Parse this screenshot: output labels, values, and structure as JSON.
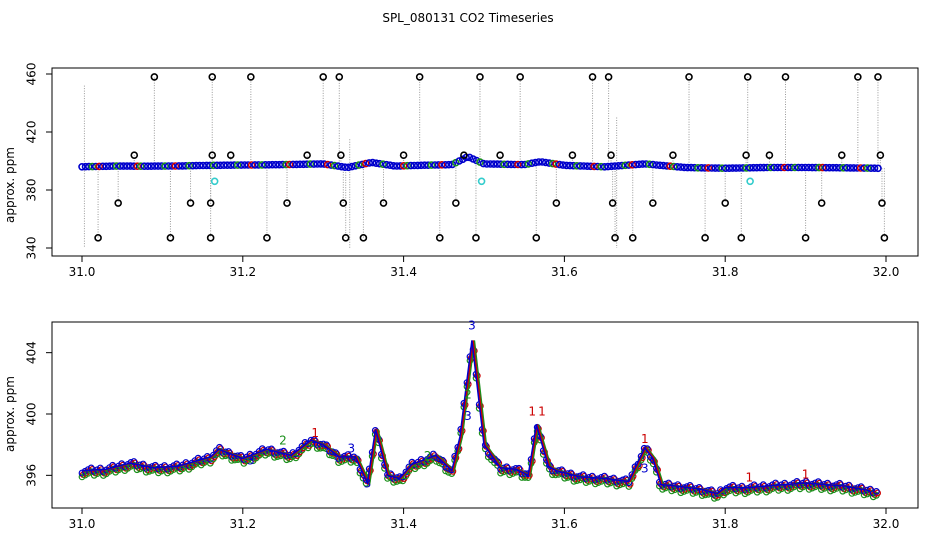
{
  "page": {
    "title": "SPL_080131  CO2 Timeseries"
  },
  "chart_data": [
    {
      "type": "scatter",
      "name": "full-range",
      "title": "SPL_080131  CO2 Timeseries",
      "xlabel": "",
      "ylabel": "approx. ppm",
      "xlim": [
        31.0,
        32.0
      ],
      "ylim": [
        340,
        460
      ],
      "xticks": [
        31.0,
        31.2,
        31.4,
        31.6,
        31.8,
        32.0
      ],
      "xtick_labels": [
        "31.0",
        "31.2",
        "31.4",
        "31.6",
        "31.8",
        "32.0"
      ],
      "yticks": [
        340,
        380,
        420,
        460
      ],
      "ytick_labels": [
        "340",
        "380",
        "420",
        "460"
      ],
      "baseline_series": {
        "name": "co2",
        "colors": [
          "#0000cc",
          "#1a8f1a",
          "#cc0000"
        ],
        "x": [
          31.0,
          31.04,
          31.08,
          31.12,
          31.16,
          31.2,
          31.25,
          31.3,
          31.33,
          31.36,
          31.39,
          31.42,
          31.46,
          31.48,
          31.5,
          31.55,
          31.57,
          31.6,
          31.65,
          31.7,
          31.75,
          31.8,
          31.85,
          31.9,
          31.95,
          31.99
        ],
        "y": [
          396,
          396.5,
          396.4,
          396.6,
          397,
          397.2,
          397.5,
          398,
          395.5,
          399,
          396.5,
          397,
          397.5,
          403,
          398,
          397.5,
          399.5,
          397,
          396,
          398,
          395.5,
          395,
          395.5,
          395.5,
          395.3,
          395
        ]
      },
      "outlier_points": {
        "color": "#000000",
        "x": [
          31.02,
          31.045,
          31.065,
          31.09,
          31.11,
          31.135,
          31.16,
          31.16,
          31.162,
          31.162,
          31.185,
          31.21,
          31.23,
          31.255,
          31.28,
          31.3,
          31.32,
          31.322,
          31.325,
          31.328,
          31.35,
          31.375,
          31.4,
          31.42,
          31.445,
          31.465,
          31.475,
          31.49,
          31.495,
          31.52,
          31.545,
          31.565,
          31.59,
          31.61,
          31.635,
          31.655,
          31.658,
          31.66,
          31.663,
          31.685,
          31.71,
          31.735,
          31.755,
          31.775,
          31.8,
          31.82,
          31.826,
          31.828,
          31.855,
          31.875,
          31.9,
          31.92,
          31.945,
          31.965,
          31.99,
          31.993,
          31.995,
          31.998
        ],
        "y": [
          347,
          371,
          404,
          458,
          347,
          371,
          347,
          371,
          404,
          458,
          404,
          458,
          347,
          371,
          404,
          458,
          458,
          404,
          371,
          347,
          347,
          371,
          404,
          458,
          347,
          371,
          404,
          347,
          458,
          404,
          458,
          347,
          371,
          404,
          458,
          458,
          404,
          371,
          347,
          347,
          371,
          404,
          458,
          347,
          371,
          347,
          404,
          458,
          404,
          458,
          347,
          371,
          404,
          458,
          458,
          404,
          371,
          347
        ]
      },
      "highlight_points": {
        "color": "#33cccc",
        "x": [
          31.165,
          31.497,
          31.831
        ],
        "y": [
          386,
          386,
          386
        ]
      }
    },
    {
      "type": "line",
      "name": "zoomed",
      "title": "",
      "xlabel": "",
      "ylabel": "approx. ppm",
      "xlim": [
        31.0,
        32.0
      ],
      "ylim": [
        394,
        406
      ],
      "xticks": [
        31.0,
        31.2,
        31.4,
        31.6,
        31.8,
        32.0
      ],
      "xtick_labels": [
        "31.0",
        "31.2",
        "31.4",
        "31.6",
        "31.8",
        "32.0"
      ],
      "yticks": [
        396,
        400,
        404
      ],
      "ytick_labels": [
        "396",
        "400",
        "404"
      ],
      "series": [
        {
          "name": "line",
          "color": "#0000cc",
          "x": [
            31.0,
            31.03,
            31.06,
            31.09,
            31.12,
            31.16,
            31.17,
            31.2,
            31.23,
            31.26,
            31.285,
            31.3,
            31.32,
            31.34,
            31.355,
            31.365,
            31.38,
            31.395,
            31.41,
            31.44,
            31.46,
            31.47,
            31.485,
            31.5,
            31.52,
            31.54,
            31.555,
            31.565,
            31.58,
            31.59,
            31.62,
            31.65,
            31.68,
            31.7,
            31.71,
            31.72,
            31.74,
            31.77,
            31.79,
            31.8,
            31.83,
            31.85,
            31.9,
            31.95,
            31.98
          ],
          "y": [
            396.3,
            396.4,
            396.8,
            396.5,
            396.6,
            397.2,
            397.7,
            397.1,
            397.7,
            397.3,
            398.3,
            398,
            397.2,
            397.2,
            395.5,
            399,
            396,
            395.8,
            396.7,
            397.3,
            396.3,
            398.5,
            404.8,
            398,
            396.5,
            396.4,
            396,
            399.3,
            396.6,
            396.3,
            395.9,
            395.8,
            395.6,
            397.8,
            397.1,
            395.4,
            395.3,
            395.1,
            394.8,
            395.2,
            395.2,
            395.3,
            395.5,
            395.3,
            395
          ]
        }
      ],
      "marker_labels": {
        "text": [
          "1",
          "1",
          "1",
          "1",
          "1",
          "1",
          "2",
          "2",
          "2",
          "3",
          "3",
          "3",
          "3",
          "3",
          "3"
        ],
        "colors": [
          "#cc0000",
          "#cc0000",
          "#cc0000",
          "#cc0000",
          "#cc0000",
          "#cc0000",
          "#1a8f1a",
          "#1a8f1a",
          "#1a8f1a",
          "#0000cc",
          "#0000cc",
          "#0000cc",
          "#0000cc",
          "#0000cc",
          "#0000cc"
        ],
        "x": [
          31.56,
          31.572,
          31.29,
          31.7,
          31.83,
          31.9,
          31.25,
          31.43,
          31.48,
          31.485,
          31.355,
          31.335,
          31.48,
          31.7,
          31.21
        ],
        "y": [
          399.9,
          399.9,
          398.5,
          398.1,
          395.6,
          395.8,
          398,
          397,
          401,
          405.5,
          395.2,
          397.5,
          399.6,
          396.2,
          396.7
        ]
      }
    }
  ]
}
